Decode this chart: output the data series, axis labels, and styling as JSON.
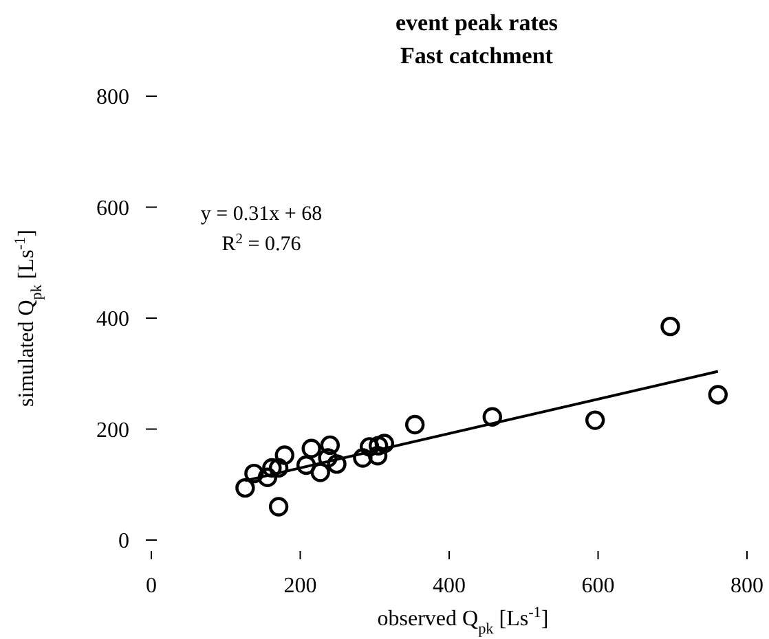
{
  "chart_data": {
    "type": "scatter",
    "title": "event peak rates",
    "subtitle": "Fast catchment",
    "xlabel": "observed Q$_{pk}$ [Ls$^{-1}$]",
    "ylabel": "simulated Q$_{pk}$ [Ls$^{-1}$]",
    "annotations": [
      "y = 0.31x + 68",
      "R$^{2}$ = 0.76"
    ],
    "xlim": [
      0,
      800
    ],
    "ylim": [
      0,
      800
    ],
    "xticks": [
      0,
      200,
      400,
      600,
      800
    ],
    "yticks": [
      0,
      200,
      400,
      600,
      800
    ],
    "grid": false,
    "series": [
      {
        "color": "#000000",
        "marker": "circle",
        "x": [
          126,
          138,
          156,
          162,
          171,
          179,
          171,
          215,
          208,
          227,
          240,
          237,
          249,
          284,
          293,
          304,
          305,
          313,
          354,
          458,
          596,
          697,
          761
        ],
        "values": [
          94,
          120,
          113,
          130,
          130,
          153,
          60,
          165,
          135,
          122,
          171,
          148,
          137,
          148,
          168,
          152,
          170,
          174,
          208,
          222,
          216,
          385,
          262
        ]
      },
      {
        "type": "line",
        "color": "#000000",
        "marker": "none",
        "x": [
          126,
          761
        ],
        "values": [
          107,
          304
        ]
      }
    ]
  }
}
